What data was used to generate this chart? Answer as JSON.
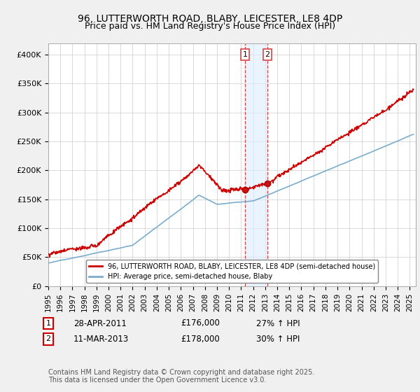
{
  "title": "96, LUTTERWORTH ROAD, BLABY, LEICESTER, LE8 4DP",
  "subtitle": "Price paid vs. HM Land Registry's House Price Index (HPI)",
  "ylabel_ticks": [
    "£0",
    "£50K",
    "£100K",
    "£150K",
    "£200K",
    "£250K",
    "£300K",
    "£350K",
    "£400K"
  ],
  "ytick_values": [
    0,
    50000,
    100000,
    150000,
    200000,
    250000,
    300000,
    350000,
    400000
  ],
  "ylim": [
    0,
    420000
  ],
  "xlim_start": 1995.0,
  "xlim_end": 2025.5,
  "red_color": "#cc0000",
  "blue_color": "#7aadcc",
  "vline_color": "#dd4444",
  "shade_color": "#ddeeff",
  "legend1": "96, LUTTERWORTH ROAD, BLABY, LEICESTER, LE8 4DP (semi-detached house)",
  "legend2": "HPI: Average price, semi-detached house, Blaby",
  "transaction1_date": "28-APR-2011",
  "transaction1_price": "£176,000",
  "transaction1_hpi": "27% ↑ HPI",
  "transaction1_year": 2011.32,
  "transaction2_date": "11-MAR-2013",
  "transaction2_price": "£178,000",
  "transaction2_hpi": "30% ↑ HPI",
  "transaction2_year": 2013.19,
  "footer": "Contains HM Land Registry data © Crown copyright and database right 2025.\nThis data is licensed under the Open Government Licence v3.0.",
  "xticks": [
    1995,
    1996,
    1997,
    1998,
    1999,
    2000,
    2001,
    2002,
    2003,
    2004,
    2005,
    2006,
    2007,
    2008,
    2009,
    2010,
    2011,
    2012,
    2013,
    2014,
    2015,
    2016,
    2017,
    2018,
    2019,
    2020,
    2021,
    2022,
    2023,
    2024,
    2025
  ]
}
